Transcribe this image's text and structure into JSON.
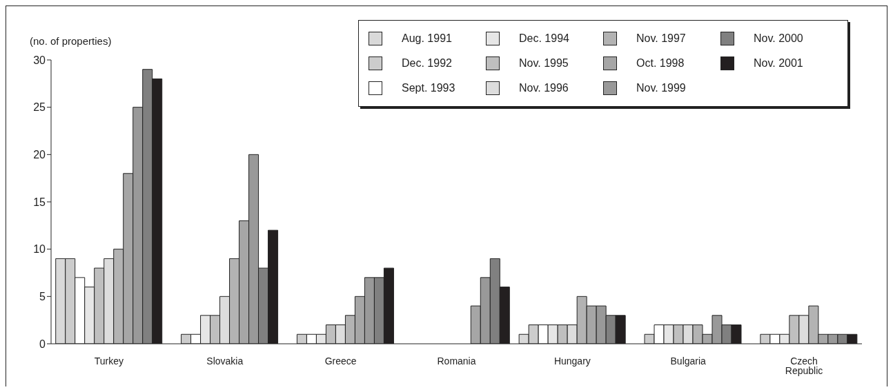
{
  "chart_data": {
    "type": "bar",
    "ylabel": "(no. of properties)",
    "categories": [
      "Turkey",
      "Slovakia",
      "Greece",
      "Romania",
      "Hungary",
      "Bulgaria",
      "Czech Republic"
    ],
    "series": [
      {
        "name": "Aug. 1991",
        "color": "#d9d9d9",
        "values": [
          9,
          0,
          0,
          0,
          1,
          0,
          0
        ]
      },
      {
        "name": "Dec. 1992",
        "color": "#cccccc",
        "values": [
          9,
          1,
          1,
          0,
          2,
          1,
          1
        ]
      },
      {
        "name": "Sept. 1993",
        "color": "#ffffff",
        "values": [
          7,
          1,
          1,
          0,
          2,
          2,
          1
        ]
      },
      {
        "name": "Dec. 1994",
        "color": "#e6e6e6",
        "values": [
          6,
          3,
          1,
          0,
          2,
          2,
          1
        ]
      },
      {
        "name": "Nov. 1995",
        "color": "#bfbfbf",
        "values": [
          8,
          3,
          2,
          0,
          2,
          2,
          3
        ]
      },
      {
        "name": "Nov. 1996",
        "color": "#dddddd",
        "values": [
          9,
          5,
          2,
          0,
          2,
          2,
          3
        ]
      },
      {
        "name": "Nov. 1997",
        "color": "#b3b3b3",
        "values": [
          10,
          9,
          3,
          0,
          5,
          2,
          4
        ]
      },
      {
        "name": "Oct. 1998",
        "color": "#a6a6a6",
        "values": [
          18,
          13,
          5,
          4,
          4,
          1,
          1
        ]
      },
      {
        "name": "Nov. 1999",
        "color": "#999999",
        "values": [
          25,
          20,
          7,
          7,
          4,
          3,
          1
        ]
      },
      {
        "name": "Nov. 2000",
        "color": "#808080",
        "values": [
          29,
          8,
          7,
          9,
          3,
          2,
          1
        ]
      },
      {
        "name": "Nov. 2001",
        "color": "#231f20",
        "values": [
          28,
          12,
          8,
          6,
          3,
          2,
          1
        ]
      }
    ],
    "ylim": [
      0,
      30
    ],
    "yticks": [
      0,
      5,
      10,
      15,
      20,
      25,
      30
    ],
    "grid": false,
    "legend": "top right"
  }
}
